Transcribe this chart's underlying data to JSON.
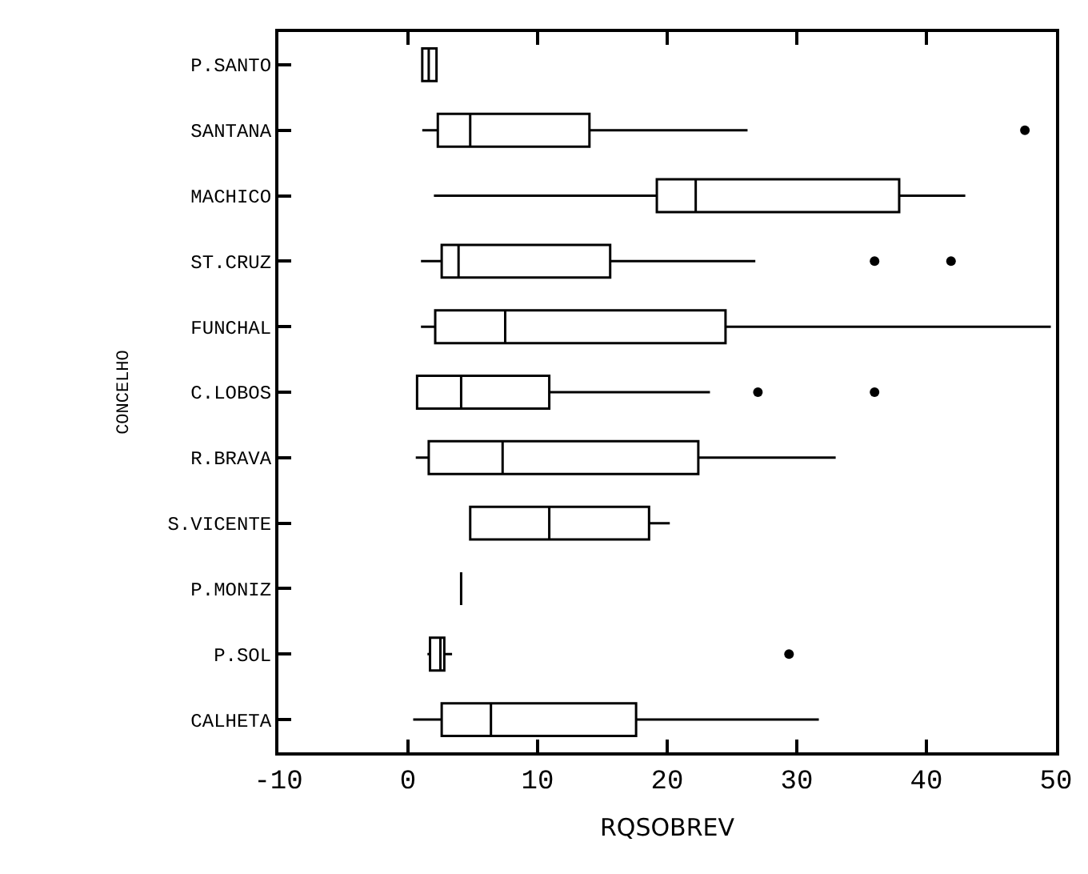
{
  "chart_data": {
    "type": "box",
    "orientation": "horizontal",
    "xlabel": "RQSOBREV",
    "ylabel": "CONCELHO",
    "categories": [
      "P.SANTO",
      "SANTANA",
      "MACHICO",
      "ST.CRUZ",
      "FUNCHAL",
      "C.LOBOS",
      "R.BRAVA",
      "S.VICENTE",
      "P.MONIZ",
      "P.SOL",
      "CALHETA"
    ],
    "boxes": [
      {
        "low": 1.1,
        "q1": 1.1,
        "median": 1.6,
        "q3": 2.2,
        "high": 2.2
      },
      {
        "low": 1.1,
        "q1": 2.3,
        "median": 4.8,
        "q3": 14,
        "high": 26.2,
        "outliers": [
          47.6
        ]
      },
      {
        "low": 2,
        "q1": 19.2,
        "median": 22.2,
        "q3": 37.9,
        "high": 43
      },
      {
        "low": 1,
        "q1": 2.6,
        "median": 3.9,
        "q3": 15.6,
        "high": 26.8,
        "outliers": [
          36,
          41.9
        ]
      },
      {
        "low": 1,
        "q1": 2.1,
        "median": 7.5,
        "q3": 24.5,
        "high": 49.6
      },
      {
        "low": 0.7,
        "q1": 0.7,
        "median": 4.1,
        "q3": 10.9,
        "high": 23.3,
        "outliers": [
          27,
          36
        ]
      },
      {
        "low": 0.6,
        "q1": 1.6,
        "median": 7.3,
        "q3": 22.4,
        "high": 33
      },
      {
        "low": 4.8,
        "q1": 4.8,
        "median": 10.9,
        "q3": 18.6,
        "high": 20.2
      },
      {
        "low": 4.1,
        "q1": 4.1,
        "median": 4.1,
        "q3": 4.1,
        "high": 4.1
      },
      {
        "low": 1.5,
        "q1": 1.7,
        "median": 2.5,
        "q3": 2.8,
        "high": 3.4,
        "outliers": [
          29.4
        ]
      },
      {
        "low": 0.4,
        "q1": 2.6,
        "median": 6.4,
        "q3": 17.6,
        "high": 31.7
      }
    ],
    "color": "#000000",
    "xlim": [
      -10,
      50
    ],
    "xticks": [
      -10,
      0,
      10,
      20,
      30,
      40,
      50
    ],
    "grid": false
  }
}
